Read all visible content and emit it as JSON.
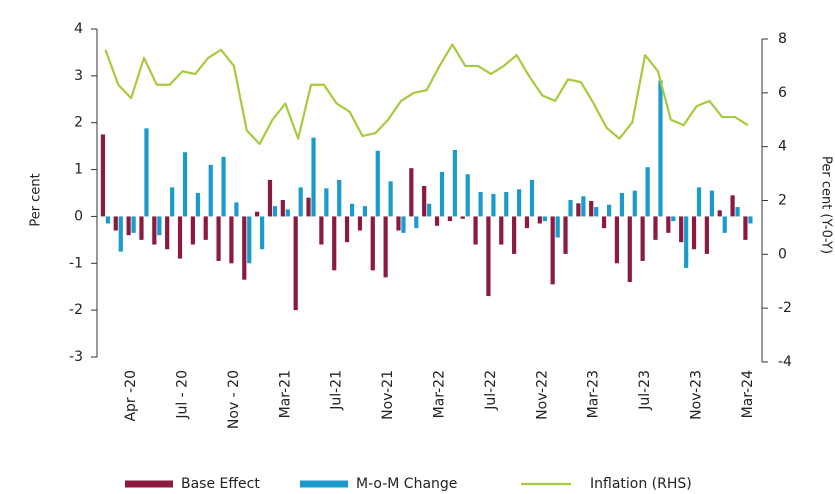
{
  "chart_data": {
    "type": "bar-line",
    "y_label": "Per cent",
    "y2_label": "Per cent (Y-0-Y)",
    "categories": [
      null,
      null,
      "Apr -20",
      null,
      null,
      null,
      "Jul - 20",
      null,
      null,
      null,
      "Nov - 20",
      null,
      null,
      null,
      "Mar-21",
      null,
      null,
      null,
      "Jul-21",
      null,
      null,
      null,
      "Nov-21",
      null,
      null,
      null,
      "Mar-22",
      null,
      null,
      null,
      "Jul-22",
      null,
      null,
      null,
      "Nov-22",
      null,
      null,
      null,
      "Mar-23",
      null,
      null,
      null,
      "Jul-23",
      null,
      null,
      null,
      "Nov-23",
      null,
      null,
      null,
      "Mar-24"
    ],
    "series": [
      {
        "name": "Base Effect",
        "type": "bar",
        "color": "#8b1a40",
        "axis": "y",
        "values": [
          1.75,
          -0.3,
          -0.4,
          -0.5,
          -0.6,
          -0.7,
          -0.9,
          -0.6,
          -0.5,
          -0.95,
          -1.0,
          -1.35,
          0.1,
          0.78,
          0.35,
          -2.0,
          0.4,
          -0.6,
          -1.15,
          -0.55,
          -0.3,
          -1.15,
          -1.3,
          -0.3,
          1.03,
          0.65,
          -0.2,
          -0.1,
          -0.05,
          -0.6,
          -1.7,
          -0.6,
          -0.8,
          -0.25,
          -0.15,
          -1.45,
          -0.8,
          0.28,
          0.33,
          -0.25,
          -1.0,
          -1.4,
          -0.95,
          -0.5,
          -0.35,
          -0.55,
          -0.7,
          -0.8,
          0.13,
          0.45,
          -0.5
        ]
      },
      {
        "name": "M-o-M Change",
        "type": "bar",
        "color": "#1a9bcb",
        "axis": "y",
        "values": [
          -0.15,
          -0.75,
          -0.35,
          1.88,
          -0.4,
          0.62,
          1.37,
          0.5,
          1.1,
          1.27,
          0.3,
          -1.0,
          -0.7,
          0.22,
          0.15,
          0.62,
          1.68,
          0.6,
          0.78,
          0.27,
          0.22,
          1.4,
          0.75,
          -0.35,
          -0.25,
          0.27,
          0.95,
          1.42,
          0.9,
          0.52,
          0.48,
          0.52,
          0.58,
          0.78,
          -0.1,
          -0.45,
          0.35,
          0.43,
          0.2,
          0.25,
          0.5,
          0.55,
          1.05,
          2.9,
          -0.1,
          -1.1,
          0.62,
          0.55,
          -0.35,
          0.2,
          -0.15
        ]
      },
      {
        "name": "Inflation (RHS)",
        "type": "line",
        "color": "#a6cb3c",
        "axis": "y2",
        "values": [
          7.6,
          6.3,
          5.8,
          7.3,
          6.3,
          6.3,
          6.8,
          6.7,
          7.3,
          7.6,
          7.0,
          4.6,
          4.1,
          5.0,
          5.6,
          4.3,
          6.3,
          6.3,
          5.6,
          5.3,
          4.4,
          4.5,
          5.0,
          5.7,
          6.0,
          6.1,
          7.0,
          7.8,
          7.0,
          7.0,
          6.7,
          7.0,
          7.4,
          6.6,
          5.9,
          5.7,
          6.5,
          6.4,
          5.6,
          4.7,
          4.3,
          4.9,
          7.4,
          6.8,
          5.0,
          4.8,
          5.5,
          5.7,
          5.1,
          5.1,
          4.8
        ]
      }
    ],
    "ylim": [
      -3,
      4
    ],
    "yticks": [
      -3,
      -2,
      -1,
      0,
      1,
      2,
      3,
      4
    ],
    "y2lim": [
      -4,
      8
    ],
    "y2ticks": [
      -4,
      -2,
      0,
      2,
      4,
      6,
      8
    ],
    "legend": "bottom"
  }
}
